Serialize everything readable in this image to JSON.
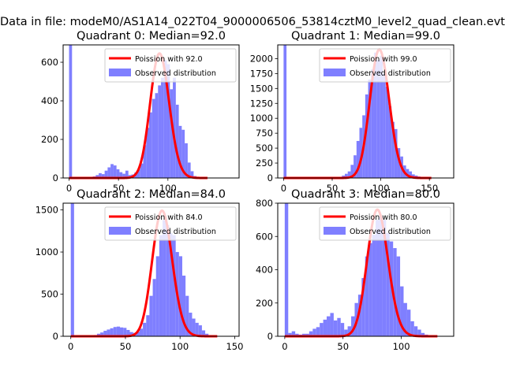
{
  "figure": {
    "suptitle": "Data in file: modeM0/AS1A14_022T04_9000006506_53814cztM0_level2_quad_clean.evt"
  },
  "chart_data": [
    {
      "type": "bar",
      "title": "Quadrant 0: Median=92.0",
      "xlim": [
        -6,
        172
      ],
      "ylim": [
        0,
        690
      ],
      "xticks": [
        0,
        50,
        100
      ],
      "xtick_labels": [
        "0",
        "50",
        "100"
      ],
      "yticks": [
        0,
        200,
        400,
        600
      ],
      "ytick_labels": [
        "0",
        "200",
        "400",
        "600"
      ],
      "legend": {
        "position": "upper right",
        "entries": [
          "Poission with 92.0",
          "Observed distribution"
        ]
      },
      "poisson_mean": 92.0,
      "poisson_peak": 645,
      "line_color": "#ff0000",
      "bar_color": "#7f7fff",
      "bar_width": 3.0,
      "bins": [
        0,
        18,
        21,
        24,
        27,
        30,
        33,
        36,
        39,
        42,
        45,
        48,
        51,
        54,
        57,
        60,
        63,
        66,
        69,
        72,
        75,
        78,
        81,
        84,
        87,
        90,
        93,
        96,
        99,
        102,
        105,
        108,
        111,
        114,
        117,
        120,
        123,
        126,
        129
      ],
      "values": [
        690,
        3,
        6,
        8,
        15,
        25,
        20,
        38,
        55,
        72,
        65,
        45,
        30,
        22,
        38,
        15,
        18,
        28,
        45,
        75,
        170,
        260,
        340,
        410,
        440,
        480,
        520,
        610,
        590,
        460,
        520,
        380,
        270,
        250,
        180,
        80,
        35,
        10,
        4
      ]
    },
    {
      "type": "bar",
      "title": "Quadrant 1: Median=99.0",
      "xlim": [
        -6,
        175
      ],
      "ylim": [
        0,
        2230
      ],
      "xticks": [
        0,
        50,
        100,
        150
      ],
      "xtick_labels": [
        "0",
        "50",
        "100",
        "150"
      ],
      "yticks": [
        0,
        250,
        500,
        750,
        1000,
        1250,
        1500,
        1750,
        2000
      ],
      "ytick_labels": [
        "0",
        "250",
        "500",
        "750",
        "1000",
        "1250",
        "1500",
        "1750",
        "2000"
      ],
      "legend": {
        "position": "upper right",
        "entries": [
          "Poission with 99.0",
          "Observed distribution"
        ]
      },
      "poisson_mean": 99.0,
      "poisson_peak": 2150,
      "line_color": "#ff0000",
      "bar_color": "#7f7fff",
      "bar_width": 3.0,
      "bins": [
        0,
        57,
        60,
        63,
        66,
        69,
        72,
        75,
        78,
        81,
        84,
        87,
        90,
        93,
        96,
        99,
        102,
        105,
        108,
        111,
        114,
        117,
        120,
        123,
        126,
        129,
        132,
        135,
        138,
        141
      ],
      "values": [
        2230,
        20,
        40,
        70,
        110,
        220,
        380,
        620,
        840,
        1050,
        1400,
        1650,
        1820,
        2100,
        1980,
        2050,
        1750,
        1530,
        1200,
        940,
        820,
        500,
        360,
        210,
        150,
        110,
        60,
        40,
        25,
        10
      ]
    },
    {
      "type": "bar",
      "title": "Quadrant 2: Median=84.0",
      "xlim": [
        -7,
        154
      ],
      "ylim": [
        0,
        1580
      ],
      "xticks": [
        0,
        50,
        100,
        150
      ],
      "xtick_labels": [
        "0",
        "50",
        "100",
        "150"
      ],
      "yticks": [
        0,
        500,
        1000,
        1500
      ],
      "ytick_labels": [
        "0",
        "500",
        "1000",
        "1500"
      ],
      "legend": {
        "position": "upper right",
        "entries": [
          "Poission with 84.0",
          "Observed distribution"
        ]
      },
      "poisson_mean": 84.0,
      "poisson_peak": 1490,
      "line_color": "#ff0000",
      "bar_color": "#7f7fff",
      "bar_width": 3.0,
      "bins": [
        0,
        21,
        24,
        27,
        30,
        33,
        36,
        39,
        42,
        45,
        48,
        51,
        54,
        57,
        60,
        63,
        66,
        69,
        72,
        75,
        78,
        81,
        84,
        87,
        90,
        93,
        96,
        99,
        102,
        105,
        108,
        111,
        114,
        117,
        120,
        123
      ],
      "values": [
        1580,
        15,
        30,
        45,
        65,
        80,
        95,
        110,
        115,
        105,
        100,
        75,
        50,
        40,
        55,
        90,
        160,
        250,
        480,
        680,
        950,
        1200,
        1380,
        1320,
        1230,
        1200,
        1000,
        950,
        720,
        480,
        280,
        210,
        160,
        130,
        70,
        30
      ]
    },
    {
      "type": "bar",
      "title": "Quadrant 3: Median=80.0",
      "xlim": [
        -6,
        145
      ],
      "ylim": [
        0,
        800
      ],
      "xticks": [
        0,
        50,
        100
      ],
      "xtick_labels": [
        "0",
        "50",
        "100"
      ],
      "yticks": [
        0,
        200,
        400,
        600,
        800
      ],
      "ytick_labels": [
        "0",
        "200",
        "400",
        "600",
        "800"
      ],
      "legend": {
        "position": "upper right",
        "entries": [
          "Poission with 80.0",
          "Observed distribution"
        ]
      },
      "poisson_mean": 80.0,
      "poisson_peak": 760,
      "line_color": "#ff0000",
      "bar_color": "#7f7fff",
      "bar_width": 3.0,
      "bins": [
        0,
        3,
        6,
        9,
        12,
        15,
        18,
        21,
        24,
        27,
        30,
        33,
        36,
        39,
        42,
        45,
        48,
        51,
        54,
        57,
        60,
        63,
        66,
        69,
        72,
        75,
        78,
        81,
        84,
        87,
        90,
        93,
        96,
        99,
        102,
        105,
        108,
        111,
        114,
        117,
        120
      ],
      "values": [
        800,
        20,
        30,
        15,
        10,
        15,
        15,
        30,
        45,
        55,
        80,
        100,
        120,
        140,
        95,
        110,
        80,
        40,
        60,
        120,
        200,
        250,
        350,
        480,
        560,
        610,
        700,
        720,
        700,
        620,
        570,
        530,
        480,
        300,
        200,
        160,
        90,
        60,
        40,
        20,
        10
      ]
    }
  ]
}
